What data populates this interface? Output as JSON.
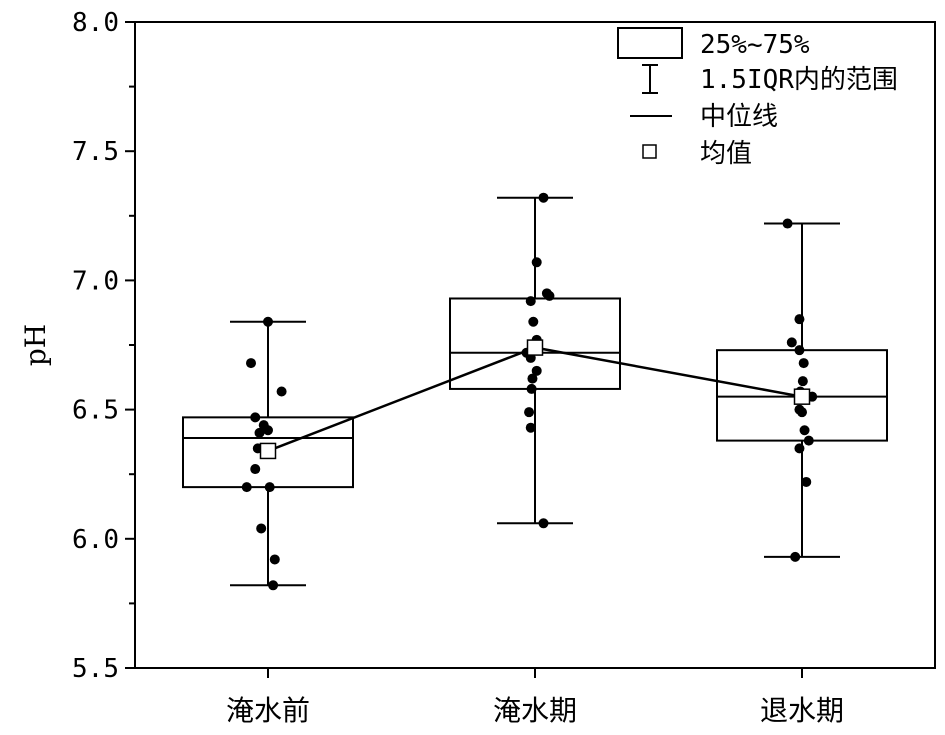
{
  "chart_data": {
    "type": "box",
    "ylabel": "pH",
    "ylim": [
      5.5,
      8.0
    ],
    "yticks": [
      "5.5",
      "6.0",
      "6.5",
      "7.0",
      "7.5",
      "8.0"
    ],
    "categories": [
      "淹水前",
      "淹水期",
      "退水期"
    ],
    "boxes": [
      {
        "category": "淹水前",
        "q1": 6.2,
        "median": 6.39,
        "q3": 6.47,
        "whisker_low": 5.82,
        "whisker_high": 6.84,
        "mean": 6.34,
        "points": [
          {
            "x": 0.0,
            "y": 6.84
          },
          {
            "x": -0.2,
            "y": 6.68
          },
          {
            "x": 0.16,
            "y": 6.57
          },
          {
            "x": -0.15,
            "y": 6.47
          },
          {
            "x": -0.05,
            "y": 6.44
          },
          {
            "x": 0.0,
            "y": 6.42
          },
          {
            "x": -0.1,
            "y": 6.41
          },
          {
            "x": -0.12,
            "y": 6.35
          },
          {
            "x": -0.15,
            "y": 6.27
          },
          {
            "x": -0.25,
            "y": 6.2
          },
          {
            "x": 0.02,
            "y": 6.2
          },
          {
            "x": -0.08,
            "y": 6.04
          },
          {
            "x": 0.08,
            "y": 5.92
          },
          {
            "x": 0.06,
            "y": 5.82
          }
        ]
      },
      {
        "category": "淹水期",
        "q1": 6.58,
        "median": 6.72,
        "q3": 6.93,
        "whisker_low": 6.06,
        "whisker_high": 7.32,
        "mean": 6.74,
        "points": [
          {
            "x": 0.1,
            "y": 7.32
          },
          {
            "x": 0.02,
            "y": 7.07
          },
          {
            "x": 0.14,
            "y": 6.95
          },
          {
            "x": 0.17,
            "y": 6.94
          },
          {
            "x": -0.05,
            "y": 6.92
          },
          {
            "x": -0.02,
            "y": 6.84
          },
          {
            "x": 0.02,
            "y": 6.77
          },
          {
            "x": -0.1,
            "y": 6.72
          },
          {
            "x": -0.05,
            "y": 6.7
          },
          {
            "x": 0.02,
            "y": 6.65
          },
          {
            "x": -0.03,
            "y": 6.62
          },
          {
            "x": -0.04,
            "y": 6.58
          },
          {
            "x": -0.07,
            "y": 6.49
          },
          {
            "x": -0.05,
            "y": 6.43
          },
          {
            "x": 0.1,
            "y": 6.06
          }
        ]
      },
      {
        "category": "退水期",
        "q1": 6.38,
        "median": 6.55,
        "q3": 6.73,
        "whisker_low": 5.93,
        "whisker_high": 7.22,
        "mean": 6.55,
        "points": [
          {
            "x": -0.17,
            "y": 7.22
          },
          {
            "x": -0.03,
            "y": 6.85
          },
          {
            "x": -0.12,
            "y": 6.76
          },
          {
            "x": -0.03,
            "y": 6.73
          },
          {
            "x": 0.02,
            "y": 6.68
          },
          {
            "x": 0.01,
            "y": 6.61
          },
          {
            "x": -0.02,
            "y": 6.57
          },
          {
            "x": 0.12,
            "y": 6.55
          },
          {
            "x": -0.03,
            "y": 6.5
          },
          {
            "x": 0.0,
            "y": 6.49
          },
          {
            "x": 0.03,
            "y": 6.42
          },
          {
            "x": 0.08,
            "y": 6.38
          },
          {
            "x": -0.03,
            "y": 6.35
          },
          {
            "x": 0.05,
            "y": 6.22
          },
          {
            "x": -0.08,
            "y": 5.93
          }
        ]
      }
    ],
    "mean_line": true,
    "legend": {
      "position": "top-right",
      "items": [
        {
          "key": "box",
          "label": "25%~75%"
        },
        {
          "key": "whisker",
          "label": "1.5IQR内的范围"
        },
        {
          "key": "median",
          "label": "中位线"
        },
        {
          "key": "mean",
          "label": "均值"
        }
      ]
    },
    "grid": false
  }
}
